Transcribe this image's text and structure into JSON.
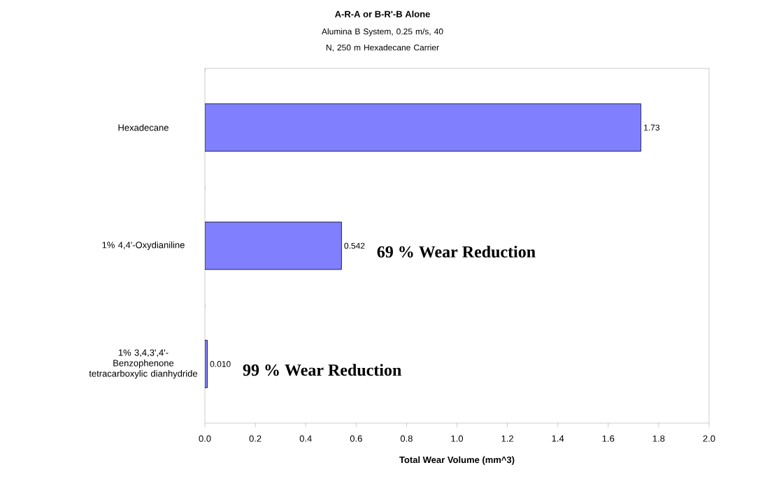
{
  "chart_data": {
    "type": "bar",
    "orientation": "horizontal",
    "title": "A-R-A or B-R'-B Alone",
    "subtitle": "Alumina B System, 0.25 m/s, 40 N, 250 m Hexadecane Carrier",
    "xlabel": "Total Wear Volume (mm^3)",
    "categories": [
      "Hexadecane",
      "1% 4,4'-Oxydianiline",
      "1% 3,4,3',4'-Benzophenone tetracarboxylic dianhydride"
    ],
    "values": [
      1.73,
      0.542,
      0.01
    ],
    "value_labels": [
      "1.73",
      "0.542",
      "0.010"
    ],
    "color": "#8080ff",
    "xlim": [
      0,
      2
    ],
    "xticks": [
      {
        "value": 0,
        "label": "0.0"
      },
      {
        "value": 0.2,
        "label": "0.2"
      },
      {
        "value": 0.4,
        "label": "0.4"
      },
      {
        "value": 0.6,
        "label": "0.6"
      },
      {
        "value": 0.8,
        "label": "0.8"
      },
      {
        "value": 1.0,
        "label": "1.0"
      },
      {
        "value": 1.2,
        "label": "1.2"
      },
      {
        "value": 1.4,
        "label": "1.4"
      },
      {
        "value": 1.6,
        "label": "1.6"
      },
      {
        "value": 1.8,
        "label": "1.8"
      },
      {
        "value": 2.0,
        "label": "2.0"
      }
    ],
    "annotations": [
      "69 % Wear Reduction",
      "99 % Wear Reduction"
    ],
    "grid": false
  }
}
